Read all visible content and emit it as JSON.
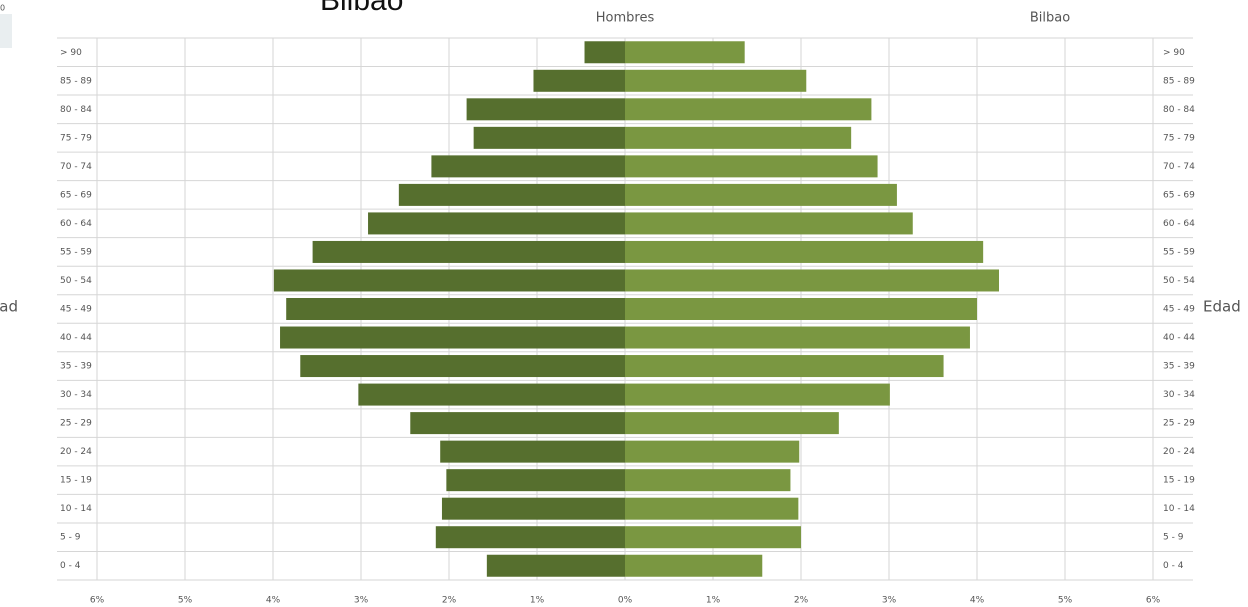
{
  "chart_data": {
    "type": "pyramid",
    "title": "Bilbao",
    "subtitle": "Hombres",
    "right_title": "Bilbao",
    "y_label": "Edad",
    "corner_label": "0",
    "categories": [
      "> 90",
      "85 - 89",
      "80 - 84",
      "75 - 79",
      "70 - 74",
      "65 - 69",
      "60 - 64",
      "55 - 59",
      "50 - 54",
      "45 - 49",
      "40 - 44",
      "35 - 39",
      "30 - 34",
      "25 - 29",
      "20 - 24",
      "15 - 19",
      "10 - 14",
      "5 - 9",
      "0 - 4"
    ],
    "series": [
      {
        "color": "#566f2e",
        "values": [
          -0.46,
          -1.04,
          -1.8,
          -1.72,
          -2.2,
          -2.57,
          -2.92,
          -3.55,
          -3.99,
          -3.85,
          -3.92,
          -3.69,
          -3.03,
          -2.44,
          -2.1,
          -2.03,
          -2.08,
          -2.15,
          -1.57
        ]
      },
      {
        "color": "#7a9741",
        "values": [
          1.36,
          2.06,
          2.8,
          2.57,
          2.87,
          3.09,
          3.27,
          4.07,
          4.25,
          4.0,
          3.92,
          3.62,
          3.01,
          2.43,
          1.98,
          1.88,
          1.97,
          2.0,
          1.56
        ]
      }
    ],
    "xlim": [
      -6,
      6
    ],
    "xticks": [
      {
        "value": -6,
        "label": "6%"
      },
      {
        "value": -5,
        "label": "5%"
      },
      {
        "value": -4,
        "label": "4%"
      },
      {
        "value": -3,
        "label": "3%"
      },
      {
        "value": -2,
        "label": "2%"
      },
      {
        "value": -1,
        "label": "1%"
      },
      {
        "value": 0,
        "label": "0%"
      },
      {
        "value": 1,
        "label": "1%"
      },
      {
        "value": 2,
        "label": "2%"
      },
      {
        "value": 3,
        "label": "3%"
      },
      {
        "value": 4,
        "label": "4%"
      },
      {
        "value": 5,
        "label": "5%"
      },
      {
        "value": 6,
        "label": "6%"
      }
    ],
    "grid": true
  }
}
